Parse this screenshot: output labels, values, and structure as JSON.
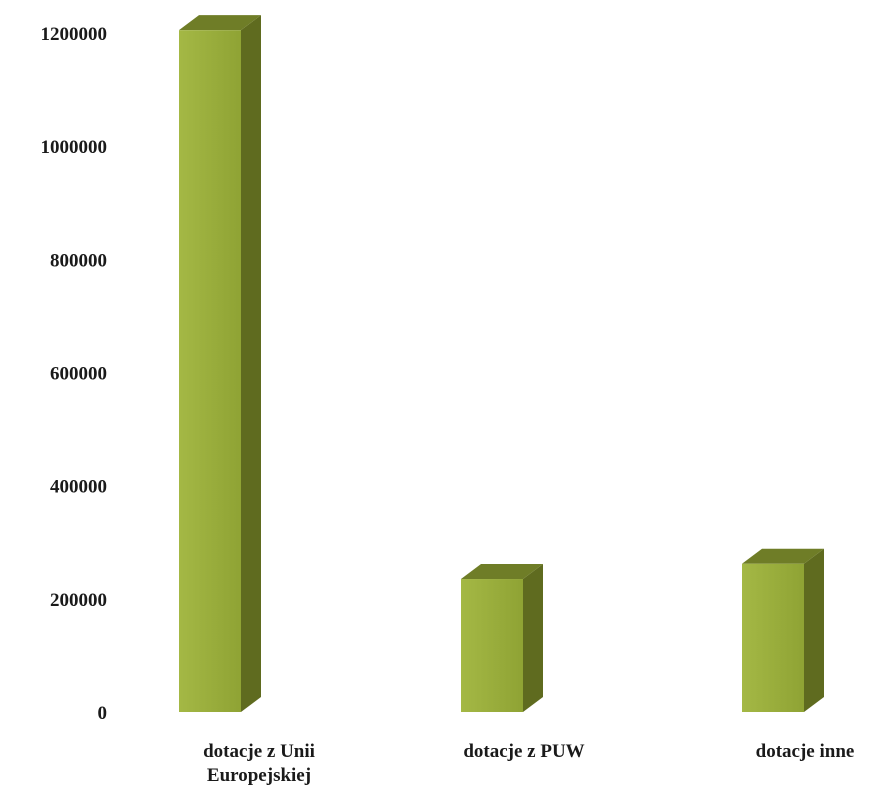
{
  "chart_data": {
    "type": "bar",
    "title": "",
    "xlabel": "",
    "ylabel": "",
    "categories": [
      [
        "dotacje z Unii",
        "Europejskiej"
      ],
      [
        "dotacje z PUW"
      ],
      [
        "dotacje inne"
      ]
    ],
    "values": [
      1205000,
      235000,
      262000
    ],
    "ylim": [
      0,
      1200000
    ],
    "yticks": [
      "0",
      "200000",
      "400000",
      "600000",
      "800000",
      "1000000",
      "1200000"
    ],
    "grid": false,
    "legend": "none",
    "colors": {
      "front": "#9aaf3c",
      "side": "#5f6b1f",
      "top": "#6f7d27"
    }
  }
}
